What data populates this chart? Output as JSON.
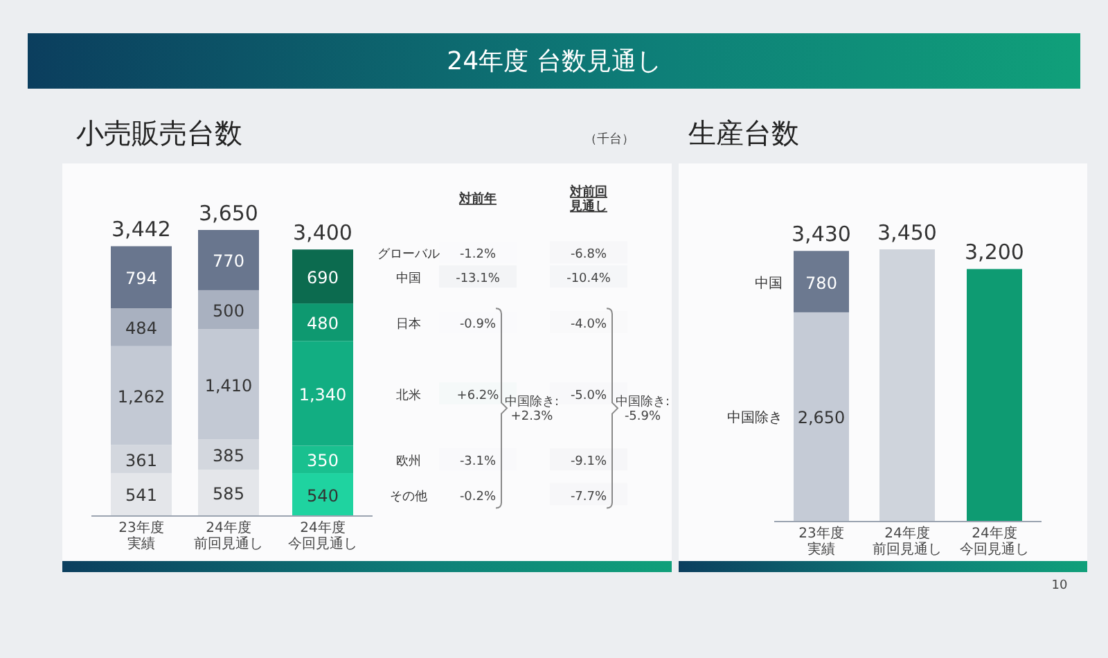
{
  "chart_data": [
    {
      "type": "bar",
      "stacked": true,
      "title": "小売販売台数",
      "categories": [
        "23年度実績",
        "24年度前回見通し",
        "24年度今回見通し"
      ],
      "series": [
        {
          "colors": [
            "#e4e6ea",
            "#e4e6ea",
            "#1fd3a0"
          ],
          "values": [
            541,
            585,
            540
          ],
          "value_labels": [
            "541",
            "585",
            "540"
          ]
        },
        {
          "colors": [
            "#d3d7de",
            "#d3d7de",
            "#19c08f"
          ],
          "values": [
            361,
            385,
            350
          ],
          "value_labels": [
            "361",
            "385",
            "350"
          ]
        },
        {
          "colors": [
            "#c3c9d4",
            "#c3c9d4",
            "#12ae82"
          ],
          "values": [
            1262,
            1410,
            1340
          ],
          "value_labels": [
            "1,262",
            "1,410",
            "1,340"
          ]
        },
        {
          "colors": [
            "#a9b1c0",
            "#a9b1c0",
            "#0e9970"
          ],
          "values": [
            484,
            500,
            480
          ],
          "value_labels": [
            "484",
            "500",
            "480"
          ]
        },
        {
          "colors": [
            "#69768e",
            "#69768e",
            "#0c6b4f"
          ],
          "values": [
            794,
            770,
            690
          ],
          "value_labels": [
            "794",
            "770",
            "690"
          ]
        }
      ],
      "totals": [
        "3,442",
        "3,650",
        "3,400"
      ],
      "annotations": [
        "24年度 台数見通し",
        "（千台）",
        "10"
      ]
    },
    {
      "type": "heatmap",
      "categories": [
        "対前年",
        "対前回見通し"
      ],
      "y_categories": [
        "グローバル",
        "中国",
        "日本",
        "北米",
        "欧州",
        "その他"
      ],
      "cells": [
        [
          -1.2,
          -6.8
        ],
        [
          -13.1,
          -10.4
        ],
        [
          -0.9,
          -4.0
        ],
        [
          6.2,
          -5.0
        ],
        [
          -3.1,
          -9.1
        ],
        [
          -0.2,
          -7.7
        ]
      ],
      "cell_labels": [
        [
          "-1.2%",
          "-6.8%"
        ],
        [
          "-13.1%",
          "-10.4%"
        ],
        [
          "-0.9%",
          "-4.0%"
        ],
        [
          "+6.2%",
          "-5.0%"
        ],
        [
          "-3.1%",
          "-9.1%"
        ],
        [
          "-0.2%",
          "-7.7%"
        ]
      ],
      "annotations": [
        "中国除き:\n+2.3%",
        "中国除き:\n-5.9%"
      ]
    },
    {
      "type": "bar",
      "stacked": true,
      "title": "生産台数",
      "categories": [
        "23年度実績",
        "24年度前回見通し",
        "24年度今回見通し"
      ],
      "series": [
        {
          "name": "中国除き",
          "color": "#c5cbd6",
          "values": [
            2650,
            null,
            null
          ],
          "value_labels": [
            "2,650",
            null,
            null
          ]
        },
        {
          "name": "中国",
          "color": "#6c7990",
          "values": [
            780,
            null,
            null
          ],
          "value_labels": [
            "780",
            null,
            null
          ]
        },
        {
          "colors": [
            null,
            "#cfd4dc",
            "#0e9b72"
          ],
          "values": [
            null,
            3450,
            3200
          ]
        }
      ],
      "totals": [
        "3,430",
        "3,450",
        "3,200"
      ]
    }
  ]
}
